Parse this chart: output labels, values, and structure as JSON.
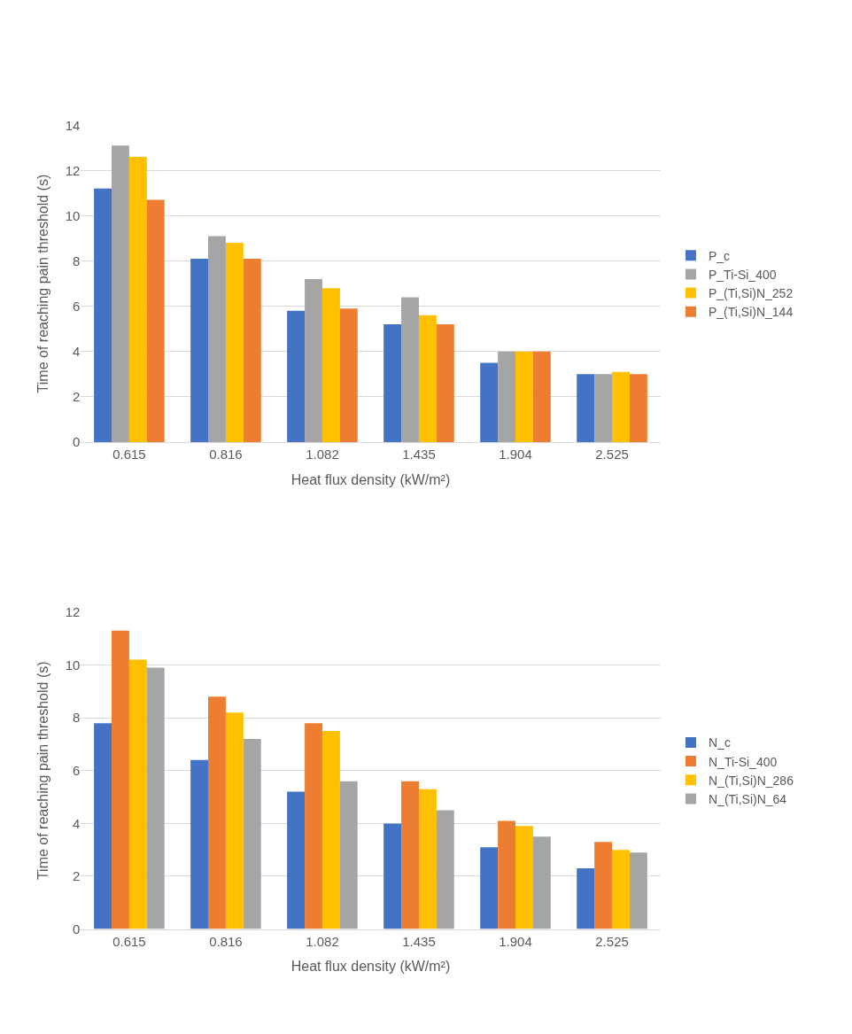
{
  "chart_data": [
    {
      "type": "bar",
      "xlabel": "Heat flux density (kW/m²)",
      "ylabel": "Time of reaching pain threshold (s)",
      "categories": [
        "0.615",
        "0.816",
        "1.082",
        "1.435",
        "1.904",
        "2.525"
      ],
      "ylim": [
        0,
        14
      ],
      "yticks": [
        0,
        2,
        4,
        6,
        8,
        10,
        12,
        14
      ],
      "grid": "y",
      "legend": "right",
      "series": [
        {
          "name": "P_c",
          "color": "#4472c4",
          "values": [
            11.2,
            8.1,
            5.8,
            5.2,
            3.5,
            3.0
          ]
        },
        {
          "name": "P_Ti-Si_400",
          "color": "#a5a5a5",
          "values": [
            13.1,
            9.1,
            7.2,
            6.4,
            4.0,
            3.0
          ]
        },
        {
          "name": "P_(Ti,Si)N_252",
          "color": "#ffc000",
          "values": [
            12.6,
            8.8,
            6.8,
            5.6,
            4.0,
            3.1
          ]
        },
        {
          "name": "P_(Ti,Si)N_144",
          "color": "#ed7d31",
          "values": [
            10.7,
            8.1,
            5.9,
            5.2,
            4.0,
            3.0
          ]
        }
      ]
    },
    {
      "type": "bar",
      "xlabel": "Heat flux density (kW/m²)",
      "ylabel": "Time of reaching pain threshold (s)",
      "categories": [
        "0.615",
        "0.816",
        "1.082",
        "1.435",
        "1.904",
        "2.525"
      ],
      "ylim": [
        0,
        12
      ],
      "yticks": [
        0,
        2,
        4,
        6,
        8,
        10,
        12
      ],
      "grid": "y",
      "legend": "right",
      "series": [
        {
          "name": "N_c",
          "color": "#4472c4",
          "values": [
            7.8,
            6.4,
            5.2,
            4.0,
            3.1,
            2.3
          ]
        },
        {
          "name": "N_Ti-Si_400",
          "color": "#ed7d31",
          "values": [
            11.3,
            8.8,
            7.8,
            5.6,
            4.1,
            3.3
          ]
        },
        {
          "name": "N_(Ti,Si)N_286",
          "color": "#ffc000",
          "values": [
            10.2,
            8.2,
            7.5,
            5.3,
            3.9,
            3.0
          ]
        },
        {
          "name": "N_(Ti,Si)N_64",
          "color": "#a5a5a5",
          "values": [
            9.9,
            7.2,
            5.6,
            4.5,
            3.5,
            2.9
          ]
        }
      ]
    }
  ]
}
